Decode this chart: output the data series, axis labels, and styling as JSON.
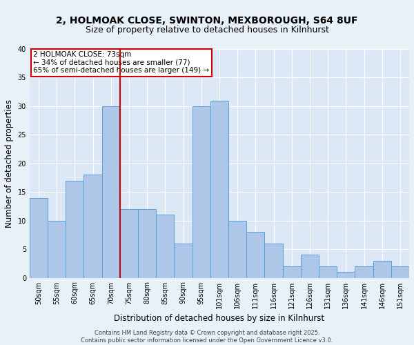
{
  "title_line1": "2, HOLMOAK CLOSE, SWINTON, MEXBOROUGH, S64 8UF",
  "title_line2": "Size of property relative to detached houses in Kilnhurst",
  "xlabel": "Distribution of detached houses by size in Kilnhurst",
  "ylabel": "Number of detached properties",
  "categories": [
    "50sqm",
    "55sqm",
    "60sqm",
    "65sqm",
    "70sqm",
    "75sqm",
    "80sqm",
    "85sqm",
    "90sqm",
    "95sqm",
    "101sqm",
    "106sqm",
    "111sqm",
    "116sqm",
    "121sqm",
    "126sqm",
    "131sqm",
    "136sqm",
    "141sqm",
    "146sqm",
    "151sqm"
  ],
  "values": [
    14,
    10,
    17,
    18,
    30,
    12,
    12,
    11,
    6,
    30,
    31,
    10,
    8,
    6,
    2,
    4,
    2,
    1,
    2,
    3,
    2
  ],
  "bar_color": "#aec6e8",
  "bar_edge_color": "#5a9fd4",
  "property_line_x": 4.5,
  "annotation_text": "2 HOLMOAK CLOSE: 73sqm\n← 34% of detached houses are smaller (77)\n65% of semi-detached houses are larger (149) →",
  "annotation_box_color": "#ffffff",
  "annotation_box_edge": "#cc0000",
  "vline_color": "#cc0000",
  "ylim": [
    0,
    40
  ],
  "yticks": [
    0,
    5,
    10,
    15,
    20,
    25,
    30,
    35,
    40
  ],
  "footer_text": "Contains HM Land Registry data © Crown copyright and database right 2025.\nContains public sector information licensed under the Open Government Licence v3.0.",
  "bg_color": "#e8f0f8",
  "plot_bg_color": "#dce8f5",
  "grid_color": "#ffffff",
  "title_fontsize": 10,
  "subtitle_fontsize": 9,
  "axis_label_fontsize": 8.5,
  "tick_fontsize": 7,
  "annotation_fontsize": 7.5,
  "footer_fontsize": 6
}
